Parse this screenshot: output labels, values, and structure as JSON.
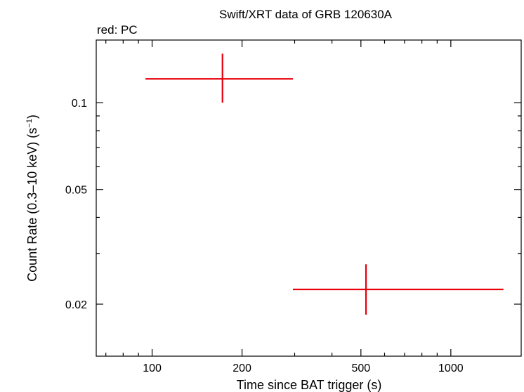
{
  "chart_data": {
    "type": "scatter",
    "title": "Swift/XRT data of GRB 120630A",
    "subtitle": "red: PC",
    "xlabel": "Time since BAT trigger (s)",
    "ylabel_main": "Count Rate (0.3–10 keV) (s",
    "ylabel_sup": "−1",
    "ylabel_tail": ")",
    "x_scale": "log",
    "y_scale": "log",
    "xlim": [
      65,
      1720
    ],
    "ylim": [
      0.0132,
      0.165
    ],
    "x_ticks": [
      {
        "value": 100,
        "label": "100"
      },
      {
        "value": 200,
        "label": "200"
      },
      {
        "value": 500,
        "label": "500"
      },
      {
        "value": 1000,
        "label": "1000"
      }
    ],
    "y_ticks": [
      {
        "value": 0.1,
        "label": "0.1"
      },
      {
        "value": 0.05,
        "label": "0.05"
      },
      {
        "value": 0.02,
        "label": "0.02"
      }
    ],
    "series": [
      {
        "color": "#e8000b",
        "points": [
          {
            "x": 172,
            "x_lo": 95,
            "x_hi": 296,
            "y": 0.121,
            "y_lo": 0.1,
            "y_hi": 0.148
          },
          {
            "x": 520,
            "x_lo": 296,
            "x_hi": 1500,
            "y": 0.0225,
            "y_lo": 0.0184,
            "y_hi": 0.0275
          }
        ]
      }
    ]
  }
}
